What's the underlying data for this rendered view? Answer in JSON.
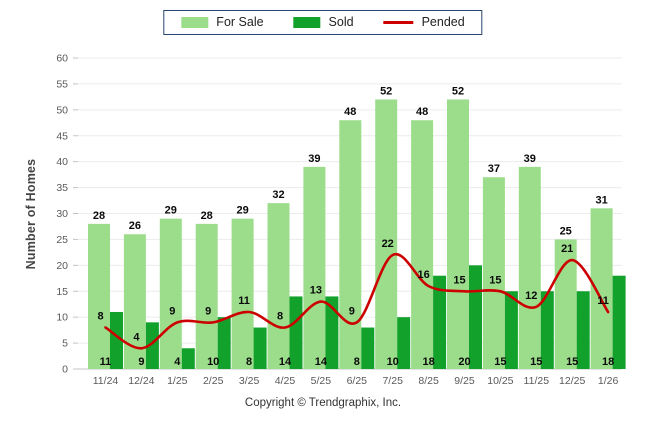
{
  "legend": {
    "items": [
      {
        "label": "For Sale",
        "type": "bar",
        "color": "#9CDD8C"
      },
      {
        "label": "Sold",
        "type": "bar",
        "color": "#12A22C"
      },
      {
        "label": "Pended",
        "type": "line",
        "color": "#CC0000"
      }
    ]
  },
  "chart_data": {
    "type": "bar",
    "title": "",
    "categories": [
      "11/24",
      "12/24",
      "1/25",
      "2/25",
      "3/25",
      "4/25",
      "5/25",
      "6/25",
      "7/25",
      "8/25",
      "9/25",
      "10/25",
      "11/25",
      "12/25",
      "1/26"
    ],
    "series": [
      {
        "name": "For Sale",
        "type": "bar",
        "color": "#9CDD8C",
        "values": [
          28,
          26,
          29,
          28,
          29,
          32,
          39,
          48,
          52,
          48,
          52,
          37,
          39,
          25,
          31
        ]
      },
      {
        "name": "Sold",
        "type": "bar",
        "color": "#12A22C",
        "values": [
          11,
          9,
          4,
          10,
          8,
          14,
          14,
          8,
          10,
          18,
          20,
          15,
          15,
          15,
          18
        ]
      },
      {
        "name": "Pended",
        "type": "line",
        "color": "#CC0000",
        "values": [
          8,
          4,
          9,
          9,
          11,
          8,
          13,
          9,
          22,
          16,
          15,
          15,
          12,
          21,
          11
        ]
      }
    ],
    "xlabel": "",
    "ylabel": "Number of Homes",
    "ylim": [
      0,
      60
    ],
    "ytick_step": 5,
    "grid": true,
    "legend_position": "top"
  },
  "colors": {
    "grid_line": "#ececec",
    "axis_line": "#c4c4c4",
    "tick_text": "#595959",
    "legend_border": "#27466F"
  },
  "footer": {
    "copyright": "Copyright © Trendgraphix, Inc."
  }
}
